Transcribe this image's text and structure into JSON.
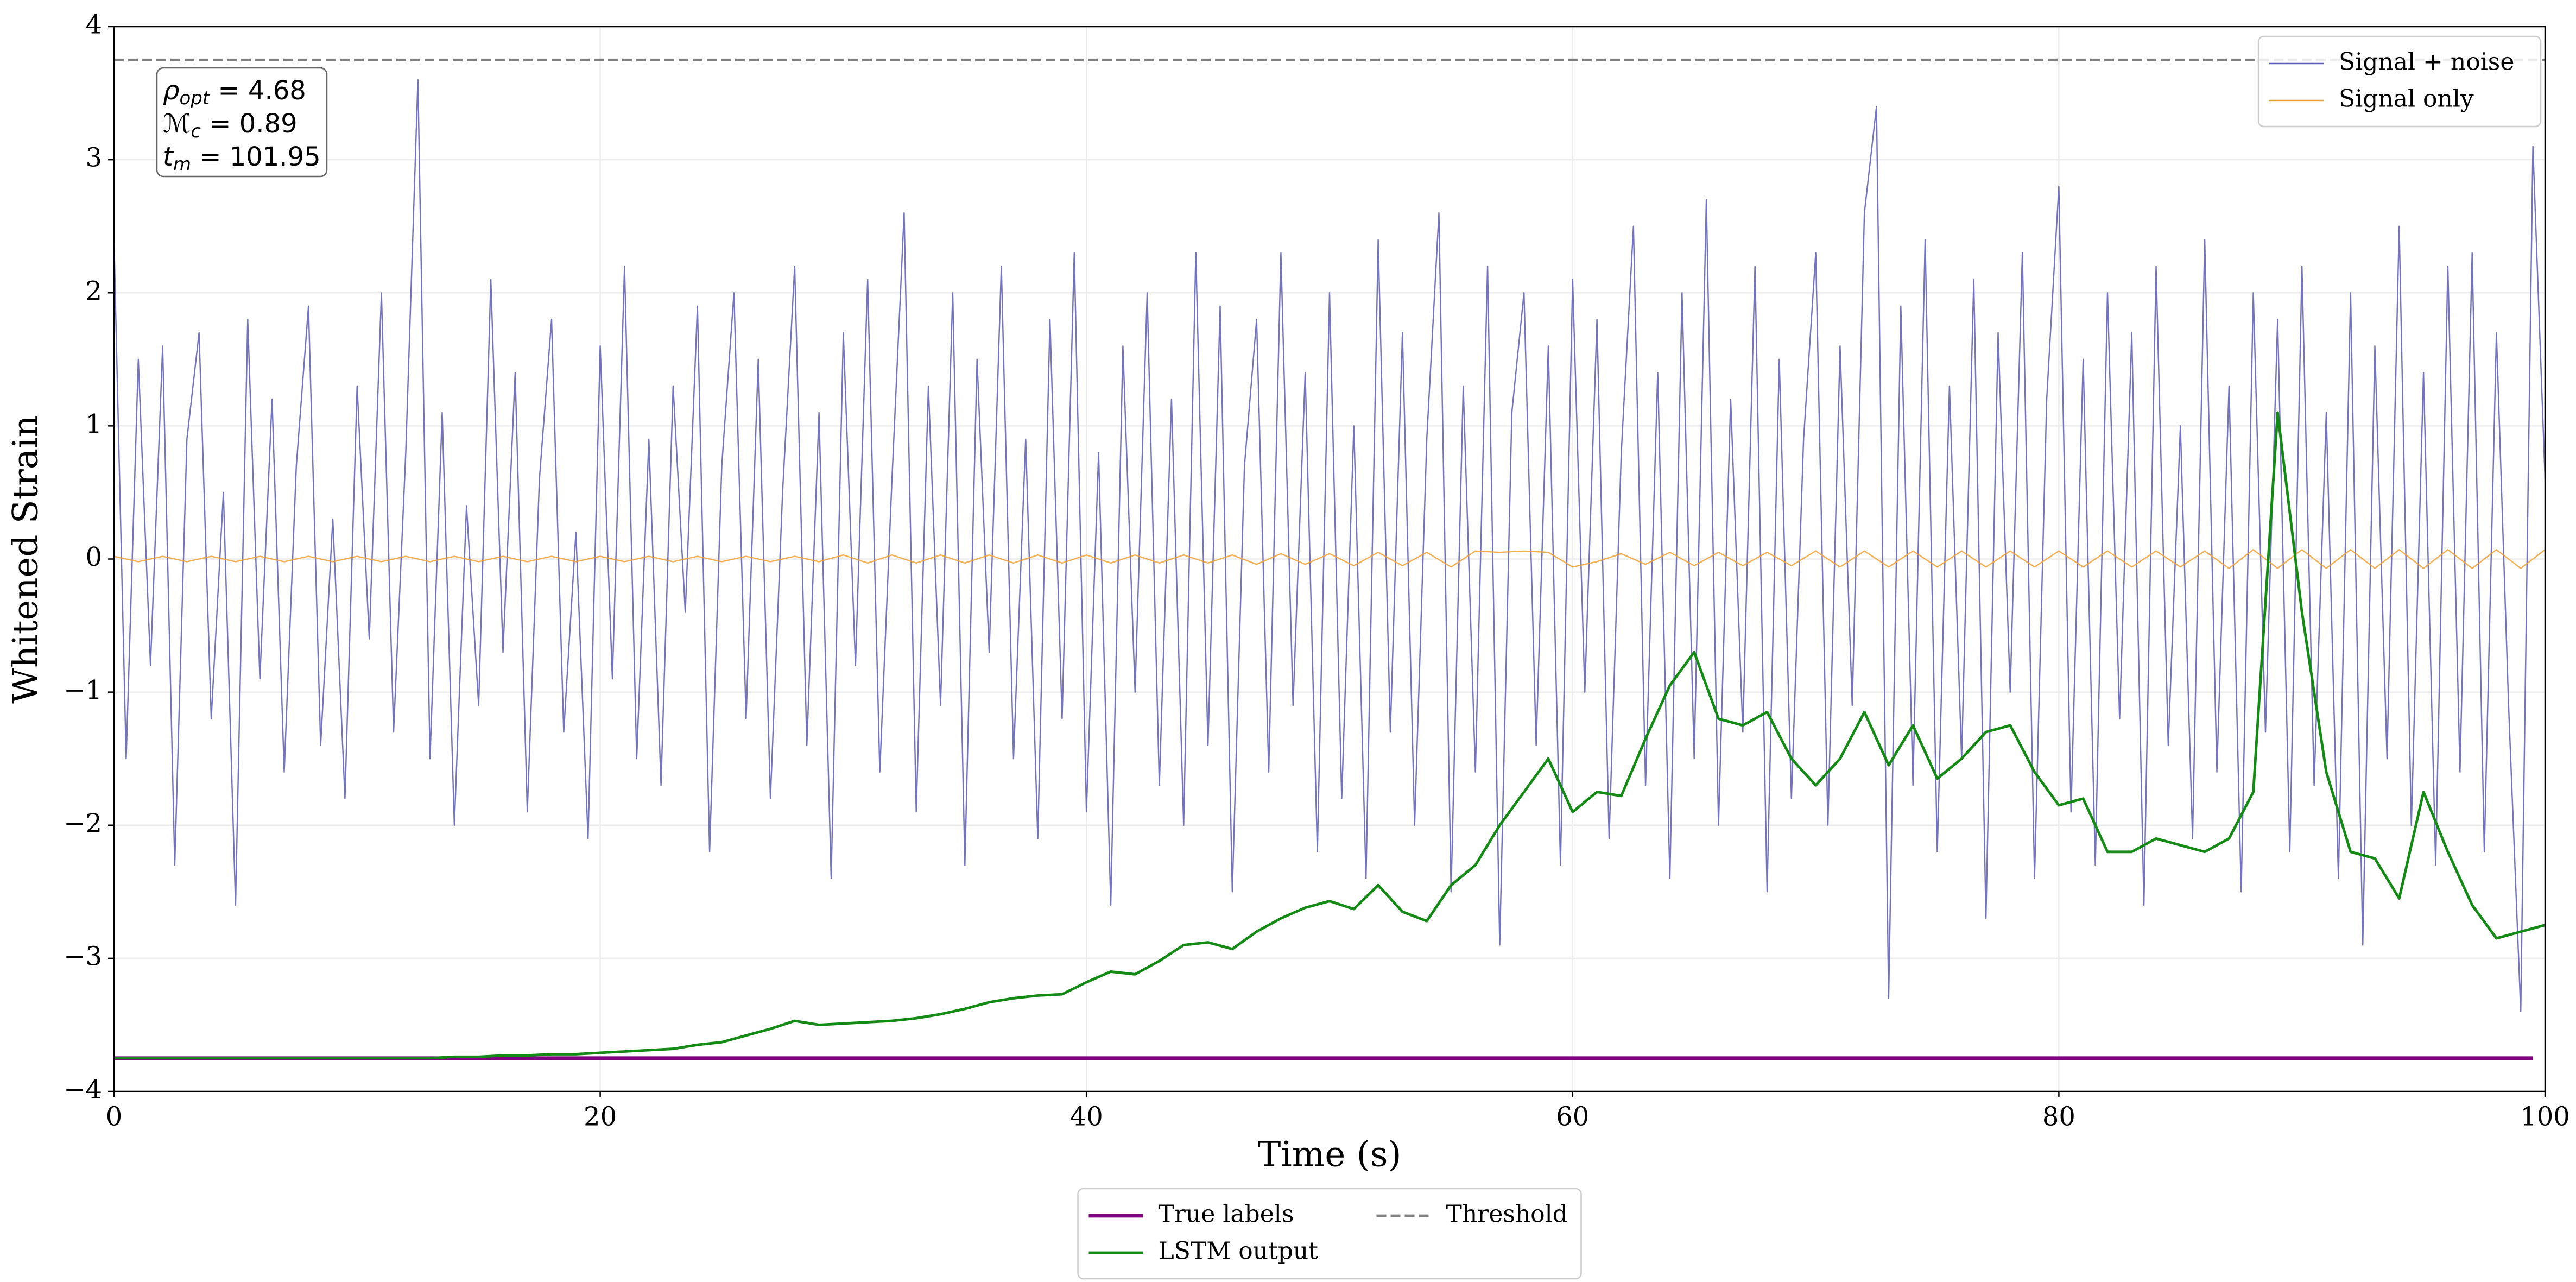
{
  "chart_data": {
    "type": "line",
    "xlabel": "Time (s)",
    "ylabel": "Whitened Strain",
    "xlim": [
      0,
      100
    ],
    "ylim": [
      -4,
      4
    ],
    "xticks": [
      0,
      20,
      40,
      60,
      80,
      100
    ],
    "yticks": [
      {
        "value": -4,
        "label": "−4"
      },
      {
        "value": -3,
        "label": "−3"
      },
      {
        "value": -2,
        "label": "−2"
      },
      {
        "value": -1,
        "label": "−1"
      },
      0,
      1,
      2,
      3,
      4
    ],
    "grid": true,
    "annotations": [
      {
        "symbol": "ρ",
        "subscript": "opt",
        "text": " = 4.68"
      },
      {
        "symbol": "ℳ",
        "subscript": "c",
        "text": " = 0.89"
      },
      {
        "symbol": "t",
        "subscript": "m",
        "text": " = 101.95"
      }
    ],
    "series": [
      {
        "name": "Signal + noise",
        "color": "#5b5bb5",
        "legend": "upper right",
        "x": [
          0,
          0.5,
          1,
          1.5,
          2,
          2.5,
          3,
          3.5,
          4,
          4.5,
          5,
          5.5,
          6,
          6.5,
          7,
          7.5,
          8,
          8.5,
          9,
          9.5,
          10,
          10.5,
          11,
          11.5,
          12,
          12.5,
          13,
          13.5,
          14,
          14.5,
          15,
          15.5,
          16,
          16.5,
          17,
          17.5,
          18,
          18.5,
          19,
          19.5,
          20,
          20.5,
          21,
          21.5,
          22,
          22.5,
          23,
          23.5,
          24,
          24.5,
          25,
          25.5,
          26,
          26.5,
          27,
          27.5,
          28,
          28.5,
          29,
          29.5,
          30,
          30.5,
          31,
          31.5,
          32,
          32.5,
          33,
          33.5,
          34,
          34.5,
          35,
          35.5,
          36,
          36.5,
          37,
          37.5,
          38,
          38.5,
          39,
          39.5,
          40,
          40.5,
          41,
          41.5,
          42,
          42.5,
          43,
          43.5,
          44,
          44.5,
          45,
          45.5,
          46,
          46.5,
          47,
          47.5,
          48,
          48.5,
          49,
          49.5,
          50,
          50.5,
          51,
          51.5,
          52,
          52.5,
          53,
          53.5,
          54,
          54.5,
          55,
          55.5,
          56,
          56.5,
          57,
          57.5,
          58,
          58.5,
          59,
          59.5,
          60,
          60.5,
          61,
          61.5,
          62,
          62.5,
          63,
          63.5,
          64,
          64.5,
          65,
          65.5,
          66,
          66.5,
          67,
          67.5,
          68,
          68.5,
          69,
          69.5,
          70,
          70.5,
          71,
          71.5,
          72,
          72.5,
          73,
          73.5,
          74,
          74.5,
          75,
          75.5,
          76,
          76.5,
          77,
          77.5,
          78,
          78.5,
          79,
          79.5,
          80,
          80.5,
          81,
          81.5,
          82,
          82.5,
          83,
          83.5,
          84,
          84.5,
          85,
          85.5,
          86,
          86.5,
          87,
          87.5,
          88,
          88.5,
          89,
          89.5,
          90,
          90.5,
          91,
          91.5,
          92,
          92.5,
          93,
          93.5,
          94,
          94.5,
          95,
          95.5,
          96,
          96.5,
          97,
          97.5,
          98,
          98.5,
          99,
          99.5,
          100
        ],
        "values": [
          2.4,
          -1.5,
          1.5,
          -0.8,
          1.6,
          -2.3,
          0.9,
          1.7,
          -1.2,
          0.5,
          -2.6,
          1.8,
          -0.9,
          1.2,
          -1.6,
          0.7,
          1.9,
          -1.4,
          0.3,
          -1.8,
          1.3,
          -0.6,
          2.0,
          -1.3,
          0.8,
          3.6,
          -1.5,
          1.1,
          -2.0,
          0.4,
          -1.1,
          2.1,
          -0.7,
          1.4,
          -1.9,
          0.6,
          1.8,
          -1.3,
          0.2,
          -2.1,
          1.6,
          -0.9,
          2.2,
          -1.5,
          0.9,
          -1.7,
          1.3,
          -0.4,
          1.9,
          -2.2,
          0.7,
          2.0,
          -1.2,
          1.5,
          -1.8,
          0.5,
          2.2,
          -1.4,
          1.1,
          -2.4,
          1.7,
          -0.8,
          2.1,
          -1.6,
          0.6,
          2.6,
          -1.9,
          1.3,
          -1.1,
          2.0,
          -2.3,
          1.5,
          -0.7,
          2.2,
          -1.5,
          0.9,
          -2.1,
          1.8,
          -1.2,
          2.3,
          -1.9,
          0.8,
          -2.6,
          1.6,
          -1.0,
          2.0,
          -1.7,
          1.2,
          -2.0,
          2.3,
          -1.4,
          1.9,
          -2.5,
          0.7,
          1.8,
          -1.6,
          2.3,
          -1.1,
          1.4,
          -2.2,
          2.0,
          -1.8,
          1.0,
          -2.4,
          2.4,
          -1.3,
          1.7,
          -2.0,
          0.9,
          2.6,
          -2.5,
          1.3,
          -1.6,
          2.2,
          -2.9,
          1.1,
          2.0,
          -1.4,
          1.6,
          -2.3,
          2.1,
          -1.0,
          1.8,
          -2.1,
          0.8,
          2.5,
          -1.7,
          1.4,
          -2.4,
          2.0,
          -1.5,
          2.7,
          -2.0,
          1.2,
          -1.3,
          2.2,
          -2.5,
          1.5,
          -1.8,
          0.9,
          2.3,
          -2.0,
          1.6,
          -1.1,
          2.6,
          3.4,
          -3.3,
          1.9,
          -1.7,
          2.4,
          -2.2,
          1.3,
          -1.5,
          2.1,
          -2.7,
          1.7,
          -1.0,
          2.3,
          -2.4,
          1.2,
          2.8,
          -1.9,
          1.5,
          -2.3,
          2.0,
          -1.2,
          1.7,
          -2.6,
          2.2,
          -1.4,
          1.0,
          -2.1,
          2.4,
          -1.6,
          1.3,
          -2.5,
          2.0,
          -1.3,
          1.8,
          -2.2,
          2.2,
          -1.7,
          1.1,
          -2.4,
          2.0,
          -2.9,
          1.6,
          -1.5,
          2.5,
          -2.0,
          1.4,
          -2.3,
          2.2,
          -1.6,
          2.3,
          -2.2,
          1.7,
          -1.1,
          -3.4,
          3.1,
          0.6
        ]
      },
      {
        "name": "Signal only",
        "color": "#f0a030",
        "legend": "upper right",
        "x": [
          0,
          1,
          2,
          3,
          4,
          5,
          6,
          7,
          8,
          9,
          10,
          11,
          12,
          13,
          14,
          15,
          16,
          17,
          18,
          19,
          20,
          21,
          22,
          23,
          24,
          25,
          26,
          27,
          28,
          29,
          30,
          31,
          32,
          33,
          34,
          35,
          36,
          37,
          38,
          39,
          40,
          41,
          42,
          43,
          44,
          45,
          46,
          47,
          48,
          49,
          50,
          51,
          52,
          53,
          54,
          55,
          56,
          57,
          58,
          59,
          60,
          61,
          62,
          63,
          64,
          65,
          66,
          67,
          68,
          69,
          70,
          71,
          72,
          73,
          74,
          75,
          76,
          77,
          78,
          79,
          80,
          81,
          82,
          83,
          84,
          85,
          86,
          87,
          88,
          89,
          90,
          91,
          92,
          93,
          94,
          95,
          96,
          97,
          98,
          99,
          100
        ],
        "values": [
          0.02,
          -0.02,
          0.02,
          -0.02,
          0.02,
          -0.02,
          0.02,
          -0.02,
          0.02,
          -0.02,
          0.02,
          -0.02,
          0.02,
          -0.02,
          0.02,
          -0.02,
          0.02,
          -0.02,
          0.02,
          -0.02,
          0.02,
          -0.02,
          0.02,
          -0.02,
          0.02,
          -0.02,
          0.02,
          -0.02,
          0.02,
          -0.02,
          0.03,
          -0.03,
          0.03,
          -0.03,
          0.03,
          -0.03,
          0.03,
          -0.03,
          0.03,
          -0.03,
          0.03,
          -0.03,
          0.03,
          -0.03,
          0.03,
          -0.03,
          0.03,
          -0.04,
          0.04,
          -0.04,
          0.04,
          -0.05,
          0.05,
          -0.05,
          0.05,
          -0.06,
          0.06,
          0.05,
          0.06,
          0.05,
          -0.06,
          -0.02,
          0.04,
          -0.04,
          0.05,
          -0.05,
          0.05,
          -0.05,
          0.05,
          -0.05,
          0.06,
          -0.06,
          0.06,
          -0.06,
          0.06,
          -0.06,
          0.06,
          -0.06,
          0.06,
          -0.06,
          0.06,
          -0.06,
          0.06,
          -0.06,
          0.06,
          -0.06,
          0.06,
          -0.07,
          0.07,
          -0.07,
          0.07,
          -0.07,
          0.07,
          -0.07,
          0.07,
          -0.07,
          0.07,
          -0.07,
          0.07,
          -0.07,
          0.07
        ]
      },
      {
        "name": "True labels",
        "color": "#800080",
        "legend": "lower center",
        "width": 2.2,
        "x": [
          0,
          99.5
        ],
        "values": [
          -3.75,
          -3.75
        ]
      },
      {
        "name": "LSTM output",
        "color": "#138a13",
        "legend": "lower center",
        "width": 1.6,
        "x": [
          0,
          1,
          2,
          3,
          4,
          5,
          6,
          7,
          8,
          9,
          10,
          11,
          12,
          13,
          14,
          15,
          16,
          17,
          18,
          19,
          20,
          21,
          22,
          23,
          24,
          25,
          26,
          27,
          28,
          29,
          30,
          31,
          32,
          33,
          34,
          35,
          36,
          37,
          38,
          39,
          40,
          41,
          42,
          43,
          44,
          45,
          46,
          47,
          48,
          49,
          50,
          51,
          52,
          53,
          54,
          55,
          56,
          57,
          58,
          59,
          60,
          61,
          62,
          63,
          64,
          65,
          66,
          67,
          68,
          69,
          70,
          71,
          72,
          73,
          74,
          75,
          76,
          77,
          78,
          79,
          80,
          81,
          82,
          83,
          84,
          85,
          86,
          87,
          88,
          89,
          90,
          91,
          92,
          93,
          94,
          95,
          96,
          97,
          98,
          99,
          100
        ],
        "values": [
          -3.75,
          -3.75,
          -3.75,
          -3.75,
          -3.75,
          -3.75,
          -3.75,
          -3.75,
          -3.75,
          -3.75,
          -3.75,
          -3.75,
          -3.75,
          -3.75,
          -3.74,
          -3.74,
          -3.73,
          -3.73,
          -3.72,
          -3.72,
          -3.71,
          -3.7,
          -3.69,
          -3.68,
          -3.65,
          -3.63,
          -3.58,
          -3.53,
          -3.47,
          -3.5,
          -3.49,
          -3.48,
          -3.47,
          -3.45,
          -3.42,
          -3.38,
          -3.33,
          -3.3,
          -3.28,
          -3.27,
          -3.18,
          -3.1,
          -3.12,
          -3.02,
          -2.9,
          -2.88,
          -2.93,
          -2.8,
          -2.7,
          -2.62,
          -2.57,
          -2.63,
          -2.45,
          -2.65,
          -2.72,
          -2.45,
          -2.3,
          -2.0,
          -1.75,
          -1.5,
          -1.9,
          -1.75,
          -1.78,
          -1.35,
          -0.95,
          -0.7,
          -1.2,
          -1.25,
          -1.15,
          -1.5,
          -1.7,
          -1.5,
          -1.15,
          -1.55,
          -1.25,
          -1.65,
          -1.5,
          -1.3,
          -1.25,
          -1.6,
          -1.85,
          -1.8,
          -2.2,
          -2.2,
          -2.1,
          -2.15,
          -2.2,
          -2.1,
          -1.75,
          1.1,
          -0.4,
          -1.6,
          -2.2,
          -2.25,
          -2.55,
          -1.75,
          -2.2,
          -2.6,
          -2.85,
          -2.8,
          -2.75
        ]
      },
      {
        "name": "Threshold",
        "color": "#808080",
        "legend": "lower center",
        "dashed": true,
        "width": 1.6,
        "x": [
          0,
          100
        ],
        "values": [
          3.75,
          3.75
        ]
      }
    ]
  }
}
